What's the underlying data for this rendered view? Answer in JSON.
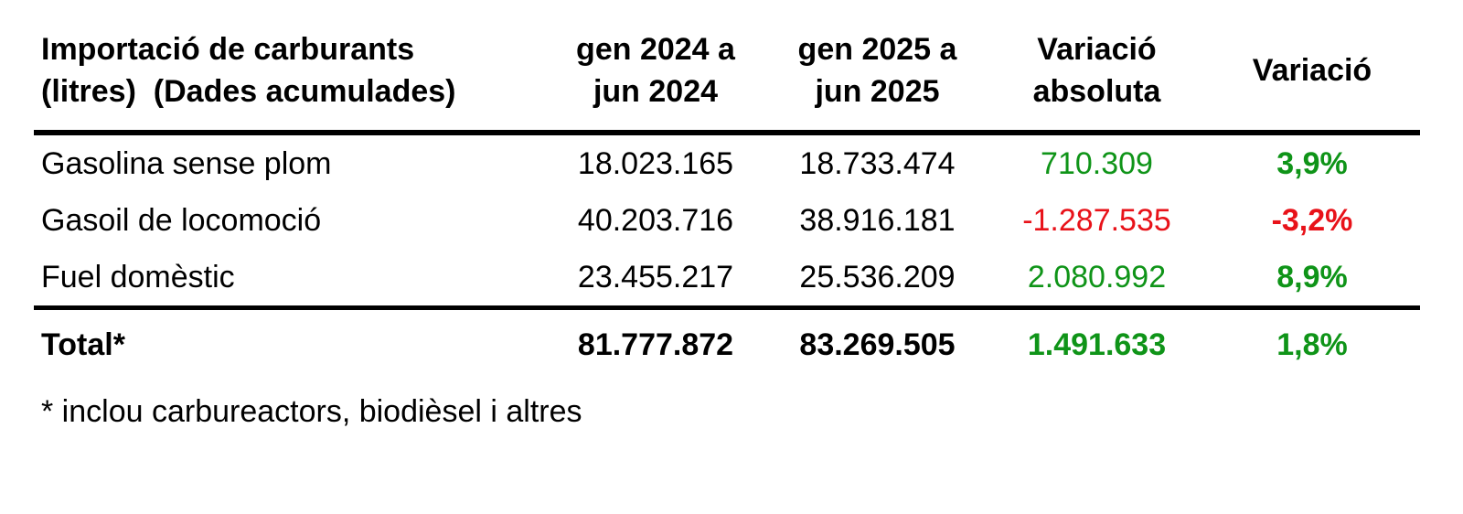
{
  "colors": {
    "background": "#ffffff",
    "text": "#000000",
    "positive_value": "#0f9418",
    "negative_value": "#e81219",
    "rule": "#000000"
  },
  "table": {
    "title": "Importació de carburants\n(litres)  (Dades acumulades)",
    "columns": {
      "period_2024": "gen 2024 a\njun 2024",
      "period_2025": "gen 2025 a\njun 2025",
      "variation_absolute": "Variació\nabsoluta",
      "variation_percent": "Variació"
    },
    "rows": [
      {
        "label": "Gasolina sense plom",
        "period_2024": "18.023.165",
        "period_2025": "18.733.474",
        "variation_absolute": "710.309",
        "variation_percent": "3,9%",
        "trend": "positive"
      },
      {
        "label": "Gasoil de locomoció",
        "period_2024": "40.203.716",
        "period_2025": "38.916.181",
        "variation_absolute": "-1.287.535",
        "variation_percent": "-3,2%",
        "trend": "negative"
      },
      {
        "label": "Fuel domèstic",
        "period_2024": "23.455.217",
        "period_2025": "25.536.209",
        "variation_absolute": "2.080.992",
        "variation_percent": "8,9%",
        "trend": "positive"
      }
    ],
    "total": {
      "label": "Total*",
      "period_2024": "81.777.872",
      "period_2025": "83.269.505",
      "variation_absolute": "1.491.633",
      "variation_percent": "1,8%",
      "trend": "positive"
    },
    "footnote": "* inclou carbureactors, biodièsel i altres"
  },
  "chart_data": {
    "type": "table",
    "title": "Importació de carburants (litres) (Dades acumulades)",
    "columns": [
      "Importació de carburants (litres) (Dades acumulades)",
      "gen 2024 a jun 2024",
      "gen 2025 a jun 2025",
      "Variació absoluta",
      "Variació"
    ],
    "rows": [
      [
        "Gasolina sense plom",
        18023165,
        18733474,
        710309,
        "3,9%"
      ],
      [
        "Gasoil de locomoció",
        40203716,
        38916181,
        -1287535,
        "-3,2%"
      ],
      [
        "Fuel domèstic",
        23455217,
        25536209,
        2080992,
        "8,9%"
      ],
      [
        "Total*",
        81777872,
        83269505,
        1491633,
        "1,8%"
      ]
    ],
    "footnote": "* inclou carbureactors, biodièsel i altres",
    "notes": "Positive variations shown in green, negative in red; percent column bold; total row bold with thick rules under header and above total"
  }
}
